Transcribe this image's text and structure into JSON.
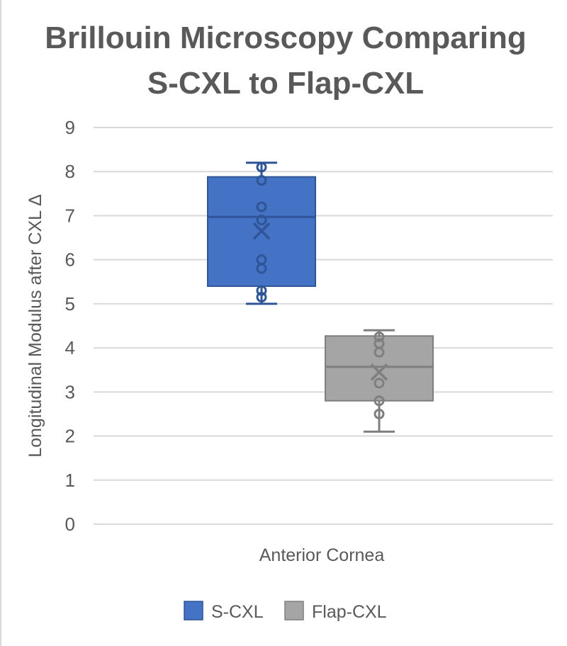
{
  "chart_data": {
    "type": "box",
    "title_lines": [
      "Brillouin Microscopy Comparing",
      "S-CXL to Flap-CXL"
    ],
    "ylabel": "Longitudinal Modulus after CXL Δ",
    "ylim": [
      0,
      9
    ],
    "yticks": [
      0,
      1,
      2,
      3,
      4,
      5,
      6,
      7,
      8,
      9
    ],
    "category": "Anterior Cornea",
    "grid": true,
    "legend_position": "bottom",
    "series": [
      {
        "name": "S-CXL",
        "color": "#4472c4",
        "stroke": "#2f5597",
        "min": 5.0,
        "q1": 5.4,
        "median": 6.97,
        "q3": 7.88,
        "max": 8.2,
        "mean": 6.65,
        "points": [
          8.1,
          7.8,
          7.2,
          6.9,
          6.0,
          5.8,
          5.3,
          5.15
        ]
      },
      {
        "name": "Flap-CXL",
        "color": "#a5a5a5",
        "stroke": "#7f7f7f",
        "min": 2.1,
        "q1": 2.8,
        "median": 3.57,
        "q3": 4.27,
        "max": 4.4,
        "mean": 3.45,
        "points": [
          4.25,
          4.1,
          3.9,
          3.2,
          2.8,
          2.5
        ]
      }
    ]
  }
}
